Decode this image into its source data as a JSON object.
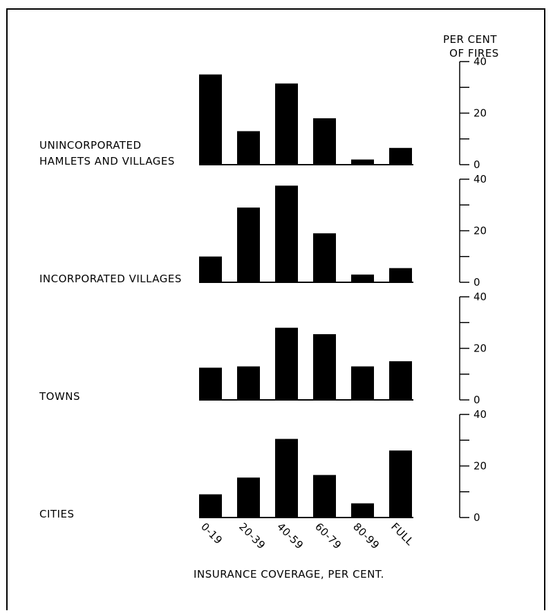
{
  "chart_data": {
    "type": "bar",
    "y_axis_title": [
      "PER CENT",
      "OF FIRES"
    ],
    "xlabel": "INSURANCE COVERAGE, PER CENT.",
    "categories": [
      "0-19",
      "20-39",
      "40-59",
      "60-79",
      "80-99",
      "FULL"
    ],
    "ylim": [
      0,
      40
    ],
    "yticks": [
      "0",
      "20",
      "40"
    ],
    "panels": [
      {
        "name": [
          "UNINCORPORATED",
          "HAMLETS AND VILLAGES"
        ],
        "values": [
          35,
          13,
          31.5,
          18,
          2,
          6.5
        ]
      },
      {
        "name": [
          "INCORPORATED VILLAGES"
        ],
        "values": [
          10,
          29,
          37.5,
          19,
          3,
          5.5
        ]
      },
      {
        "name": [
          "TOWNS"
        ],
        "values": [
          12.5,
          13,
          28,
          25.5,
          13,
          15
        ]
      },
      {
        "name": [
          "CITIES"
        ],
        "values": [
          9,
          15.5,
          30.5,
          16.5,
          5.5,
          26
        ]
      }
    ],
    "bar_color": "#000000"
  }
}
